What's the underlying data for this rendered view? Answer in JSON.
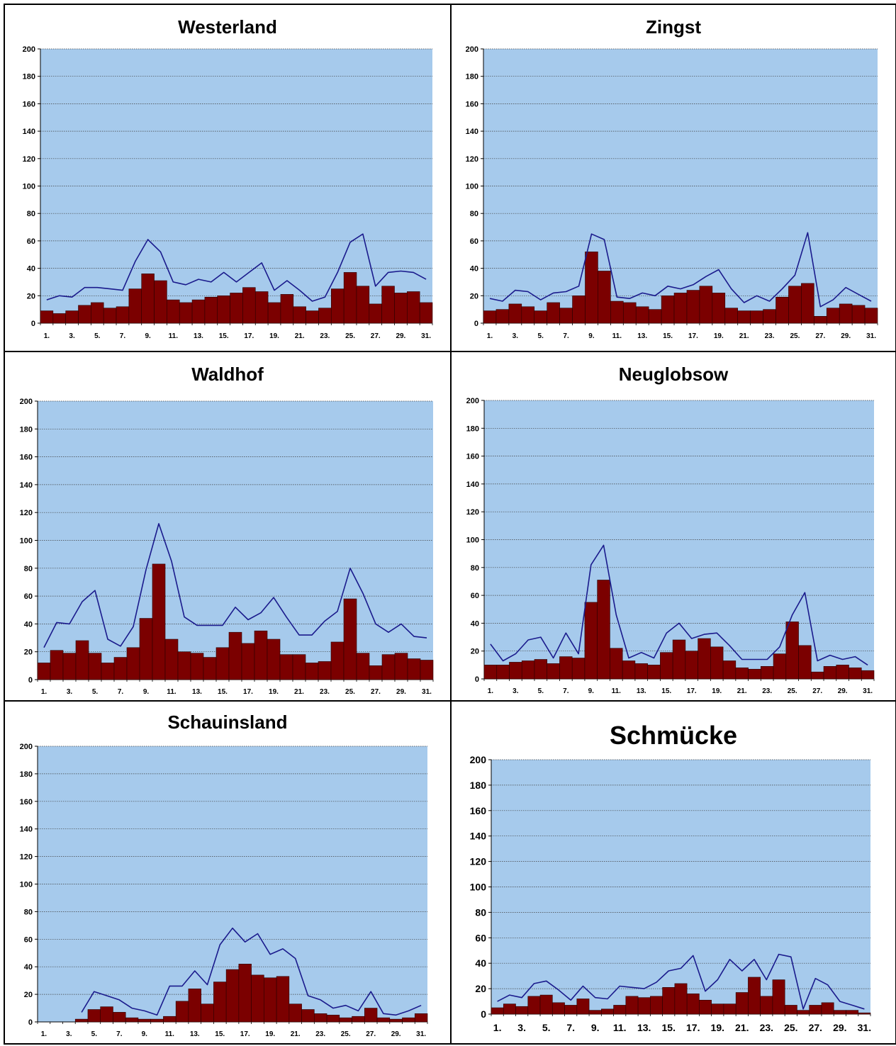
{
  "colors": {
    "plot_bg": "#a6caec",
    "bar": "#7b0000",
    "bar_stroke": "#2a0000",
    "line": "#1a1a8c",
    "gridline": "#404040"
  },
  "chart_data": [
    {
      "type": "bar",
      "title": "Westerland",
      "ylim": [
        0,
        200
      ],
      "yticks": [
        "0",
        "20",
        "40",
        "60",
        "80",
        "100",
        "120",
        "140",
        "160",
        "180",
        "200"
      ],
      "xticklabels": [
        "1.",
        "3.",
        "5.",
        "7.",
        "9.",
        "11.",
        "13.",
        "15.",
        "17.",
        "19.",
        "21.",
        "23.",
        "25.",
        "27.",
        "29.",
        "31."
      ],
      "categories": [
        1,
        2,
        3,
        4,
        5,
        6,
        7,
        8,
        9,
        10,
        11,
        12,
        13,
        14,
        15,
        16,
        17,
        18,
        19,
        20,
        21,
        22,
        23,
        24,
        25,
        26,
        27,
        28,
        29,
        30,
        31
      ],
      "grid": true,
      "series": [
        {
          "type": "bar",
          "values": [
            9,
            7,
            9,
            13,
            15,
            11,
            12,
            25,
            36,
            31,
            17,
            15,
            17,
            19,
            20,
            22,
            26,
            23,
            15,
            21,
            12,
            9,
            11,
            25,
            37,
            27,
            14,
            27,
            22,
            23,
            15
          ]
        },
        {
          "type": "line",
          "values": [
            17,
            20,
            19,
            26,
            26,
            25,
            24,
            45,
            61,
            52,
            30,
            28,
            32,
            30,
            37,
            30,
            37,
            44,
            24,
            31,
            24,
            16,
            19,
            37,
            59,
            65,
            27,
            37,
            38,
            37,
            32
          ]
        }
      ]
    },
    {
      "type": "bar",
      "title": "Zingst",
      "ylim": [
        0,
        200
      ],
      "yticks": [
        "0",
        "20",
        "40",
        "60",
        "80",
        "100",
        "120",
        "140",
        "160",
        "180",
        "200"
      ],
      "xticklabels": [
        "1.",
        "3.",
        "5.",
        "7.",
        "9.",
        "11.",
        "13.",
        "15.",
        "17.",
        "19.",
        "21.",
        "23.",
        "25.",
        "27.",
        "29.",
        "31."
      ],
      "categories": [
        1,
        2,
        3,
        4,
        5,
        6,
        7,
        8,
        9,
        10,
        11,
        12,
        13,
        14,
        15,
        16,
        17,
        18,
        19,
        20,
        21,
        22,
        23,
        24,
        25,
        26,
        27,
        28,
        29,
        30,
        31
      ],
      "grid": true,
      "series": [
        {
          "type": "bar",
          "values": [
            9,
            10,
            14,
            12,
            9,
            15,
            11,
            20,
            52,
            38,
            16,
            15,
            12,
            10,
            20,
            22,
            24,
            27,
            22,
            11,
            9,
            9,
            10,
            19,
            27,
            29,
            5,
            11,
            14,
            13,
            11
          ]
        },
        {
          "type": "line",
          "values": [
            18,
            16,
            24,
            23,
            17,
            22,
            23,
            27,
            65,
            61,
            19,
            18,
            22,
            20,
            27,
            25,
            28,
            34,
            39,
            25,
            15,
            20,
            16,
            25,
            35,
            66,
            12,
            17,
            26,
            21,
            16
          ]
        }
      ]
    },
    {
      "type": "bar",
      "title": "Waldhof",
      "ylim": [
        0,
        200
      ],
      "yticks": [
        "0",
        "20",
        "40",
        "60",
        "80",
        "100",
        "120",
        "140",
        "160",
        "180",
        "200"
      ],
      "xticklabels": [
        "1.",
        "3.",
        "5.",
        "7.",
        "9.",
        "11.",
        "13.",
        "15.",
        "17.",
        "19.",
        "21.",
        "23.",
        "25.",
        "27.",
        "29.",
        "31."
      ],
      "categories": [
        1,
        2,
        3,
        4,
        5,
        6,
        7,
        8,
        9,
        10,
        11,
        12,
        13,
        14,
        15,
        16,
        17,
        18,
        19,
        20,
        21,
        22,
        23,
        24,
        25,
        26,
        27,
        28,
        29,
        30,
        31
      ],
      "grid": true,
      "series": [
        {
          "type": "bar",
          "values": [
            12,
            21,
            19,
            28,
            19,
            12,
            16,
            23,
            44,
            83,
            29,
            20,
            19,
            16,
            23,
            34,
            26,
            35,
            29,
            18,
            18,
            12,
            13,
            27,
            58,
            19,
            10,
            18,
            19,
            15,
            14
          ]
        },
        {
          "type": "line",
          "values": [
            23,
            41,
            40,
            56,
            64,
            29,
            24,
            38,
            79,
            112,
            85,
            45,
            39,
            39,
            39,
            52,
            43,
            48,
            59,
            45,
            32,
            32,
            42,
            49,
            80,
            62,
            40,
            34,
            40,
            31,
            30
          ]
        }
      ]
    },
    {
      "type": "bar",
      "title": "Neuglobsow",
      "ylim": [
        0,
        200
      ],
      "yticks": [
        "0",
        "20",
        "40",
        "60",
        "80",
        "100",
        "120",
        "140",
        "160",
        "180",
        "200"
      ],
      "xticklabels": [
        "1.",
        "3.",
        "5.",
        "7.",
        "9.",
        "11.",
        "13.",
        "15.",
        "17.",
        "19.",
        "21.",
        "23.",
        "25.",
        "27.",
        "29.",
        "31."
      ],
      "categories": [
        1,
        2,
        3,
        4,
        5,
        6,
        7,
        8,
        9,
        10,
        11,
        12,
        13,
        14,
        15,
        16,
        17,
        18,
        19,
        20,
        21,
        22,
        23,
        24,
        25,
        26,
        27,
        28,
        29,
        30,
        31
      ],
      "grid": true,
      "series": [
        {
          "type": "bar",
          "values": [
            10,
            10,
            12,
            13,
            14,
            11,
            16,
            15,
            55,
            71,
            22,
            13,
            11,
            10,
            19,
            28,
            20,
            29,
            23,
            13,
            8,
            7,
            9,
            18,
            41,
            24,
            5,
            9,
            10,
            8,
            6
          ]
        },
        {
          "type": "line",
          "values": [
            25,
            13,
            18,
            28,
            30,
            15,
            33,
            18,
            82,
            96,
            46,
            15,
            19,
            15,
            33,
            40,
            29,
            32,
            33,
            24,
            14,
            14,
            14,
            23,
            46,
            62,
            13,
            17,
            14,
            16,
            10
          ]
        }
      ]
    },
    {
      "type": "bar",
      "title": "Schauinsland",
      "ylim": [
        0,
        200
      ],
      "yticks": [
        "0",
        "20",
        "40",
        "60",
        "80",
        "100",
        "120",
        "140",
        "160",
        "180",
        "200"
      ],
      "xticklabels": [
        "1.",
        "3.",
        "5.",
        "7.",
        "9.",
        "11.",
        "13.",
        "15.",
        "17.",
        "19.",
        "21.",
        "23.",
        "25.",
        "27.",
        "29.",
        "31."
      ],
      "categories": [
        1,
        2,
        3,
        4,
        5,
        6,
        7,
        8,
        9,
        10,
        11,
        12,
        13,
        14,
        15,
        16,
        17,
        18,
        19,
        20,
        21,
        22,
        23,
        24,
        25,
        26,
        27,
        28,
        29,
        30,
        31
      ],
      "grid": true,
      "series": [
        {
          "type": "bar",
          "values": [
            null,
            null,
            null,
            2,
            9,
            11,
            7,
            3,
            2,
            2,
            4,
            15,
            24,
            13,
            29,
            38,
            42,
            34,
            32,
            33,
            13,
            9,
            6,
            5,
            3,
            4,
            10,
            3,
            2,
            3,
            6
          ]
        },
        {
          "type": "line",
          "values": [
            null,
            null,
            null,
            7,
            22,
            19,
            16,
            10,
            8,
            5,
            26,
            26,
            37,
            27,
            56,
            68,
            58,
            64,
            49,
            53,
            46,
            19,
            16,
            10,
            12,
            8,
            22,
            6,
            5,
            8,
            12
          ]
        }
      ]
    },
    {
      "type": "bar",
      "title": "Schmücke",
      "ylim": [
        0,
        200
      ],
      "yticks": [
        "0",
        "20",
        "40",
        "60",
        "80",
        "100",
        "120",
        "140",
        "160",
        "180",
        "200"
      ],
      "xticklabels": [
        "1.",
        "3.",
        "5.",
        "7.",
        "9.",
        "11.",
        "13.",
        "15.",
        "17.",
        "19.",
        "21.",
        "23.",
        "25.",
        "27.",
        "29.",
        "31."
      ],
      "categories": [
        1,
        2,
        3,
        4,
        5,
        6,
        7,
        8,
        9,
        10,
        11,
        12,
        13,
        14,
        15,
        16,
        17,
        18,
        19,
        20,
        21,
        22,
        23,
        24,
        25,
        26,
        27,
        28,
        29,
        30,
        31
      ],
      "grid": true,
      "series": [
        {
          "type": "bar",
          "values": [
            5,
            8,
            6,
            14,
            15,
            9,
            7,
            12,
            3,
            4,
            7,
            14,
            13,
            14,
            21,
            24,
            16,
            11,
            8,
            8,
            17,
            29,
            14,
            27,
            7,
            3,
            7,
            9,
            3,
            3,
            1
          ]
        },
        {
          "type": "line",
          "values": [
            10,
            15,
            13,
            24,
            26,
            19,
            11,
            22,
            13,
            12,
            22,
            21,
            20,
            25,
            34,
            36,
            46,
            18,
            27,
            43,
            34,
            43,
            27,
            47,
            45,
            4,
            28,
            23,
            10,
            7,
            4
          ]
        }
      ]
    }
  ]
}
